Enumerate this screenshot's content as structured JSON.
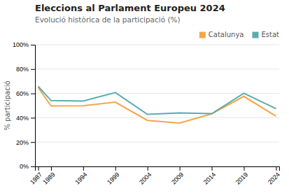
{
  "chart_data": {
    "type": "line",
    "title": "Eleccions al Parlament Europeu 2024",
    "subtitle": "Evolució històrica de la participació (%)",
    "y_label": "% participació",
    "x": [
      1987,
      1989,
      1994,
      1999,
      2004,
      2009,
      2014,
      2019,
      2024
    ],
    "series": [
      {
        "name": "Catalunya",
        "color": "#f5a54a",
        "values": [
          0.648,
          0.497,
          0.499,
          0.528,
          0.378,
          0.356,
          0.432,
          0.576,
          0.413
        ]
      },
      {
        "name": "Estat",
        "color": "#5aacb0",
        "values": [
          0.658,
          0.541,
          0.538,
          0.607,
          0.428,
          0.44,
          0.434,
          0.601,
          0.475
        ]
      }
    ],
    "xlim": [
      1986.5,
      2024.5
    ],
    "xticks": [
      1987,
      1989,
      1994,
      1999,
      2004,
      2009,
      2014,
      2019,
      2024
    ],
    "ylim": [
      0,
      1.0
    ],
    "yticks": [
      {
        "value": 0,
        "label": "0%"
      },
      {
        "value": 0.2,
        "label": "20%"
      },
      {
        "value": 0.4,
        "label": "40%"
      },
      {
        "value": 0.6,
        "label": "60%"
      },
      {
        "value": 0.8,
        "label": "80%"
      },
      {
        "value": 1.0,
        "label": "100%"
      }
    ],
    "grid": true,
    "legend": "upper right"
  }
}
